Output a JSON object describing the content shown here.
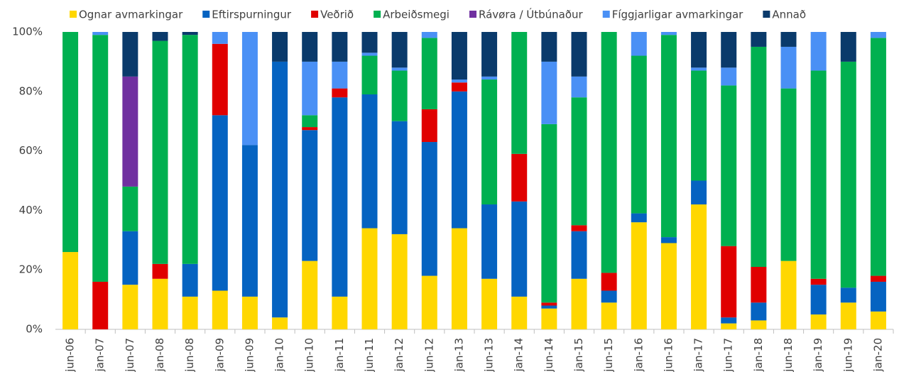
{
  "chart_data": {
    "type": "stacked_bar",
    "categories": [
      "jun-06",
      "jan-07",
      "jun-07",
      "jan-08",
      "jun-08",
      "jan-09",
      "jun-09",
      "jan-10",
      "jun-10",
      "jan-11",
      "jun-11",
      "jan-12",
      "jun-12",
      "jan-13",
      "jun-13",
      "jan-14",
      "jun-14",
      "jan-15",
      "jun-15",
      "jan-16",
      "jun-16",
      "jan-17",
      "jun-17",
      "jan-18",
      "jun-18",
      "jan-19",
      "jun-19",
      "jan-20"
    ],
    "series": [
      {
        "name": "Ognar avmarkingar",
        "color": "#FFD700",
        "values": [
          26,
          0,
          15,
          17,
          11,
          13,
          11,
          4,
          23,
          11,
          34,
          32,
          18,
          34,
          17,
          11,
          7,
          17,
          9,
          36,
          29,
          42,
          2,
          3,
          23,
          5,
          9,
          6
        ]
      },
      {
        "name": "Eftirspurningur",
        "color": "#0563C1",
        "values": [
          0,
          0,
          18,
          0,
          11,
          59,
          51,
          86,
          44,
          67,
          45,
          38,
          45,
          46,
          25,
          32,
          1,
          16,
          4,
          3,
          2,
          8,
          2,
          6,
          0,
          10,
          5,
          10
        ]
      },
      {
        "name": "Veðrið",
        "color": "#E00000",
        "values": [
          0,
          16,
          0,
          5,
          0,
          24,
          0,
          0,
          1,
          3,
          0,
          0,
          11,
          3,
          0,
          16,
          1,
          2,
          6,
          0,
          0,
          0,
          24,
          12,
          0,
          2,
          0,
          2
        ]
      },
      {
        "name": "Arbeiðsmegi",
        "color": "#00B050",
        "values": [
          74,
          83,
          15,
          75,
          77,
          0,
          0,
          0,
          4,
          0,
          13,
          17,
          24,
          0,
          42,
          41,
          60,
          43,
          81,
          53,
          68,
          37,
          54,
          74,
          58,
          70,
          76,
          80
        ]
      },
      {
        "name": "Rávøra / Útbúnaður",
        "color": "#7030A0",
        "values": [
          0,
          0,
          37,
          0,
          0,
          0,
          0,
          0,
          0,
          0,
          0,
          0,
          0,
          0,
          0,
          0,
          0,
          0,
          0,
          0,
          0,
          0,
          0,
          0,
          0,
          0,
          0,
          0
        ]
      },
      {
        "name": "Fíggjarligar avmarkingar",
        "color": "#4A90F5",
        "values": [
          0,
          1,
          0,
          0,
          0,
          4,
          38,
          0,
          18,
          9,
          1,
          1,
          2,
          1,
          1,
          0,
          21,
          7,
          0,
          8,
          1,
          1,
          6,
          0,
          14,
          13,
          0,
          2
        ]
      },
      {
        "name": "Annað",
        "color": "#0A3A6B",
        "values": [
          0,
          0,
          15,
          3,
          1,
          0,
          0,
          10,
          10,
          10,
          7,
          12,
          0,
          16,
          15,
          0,
          10,
          15,
          0,
          0,
          0,
          12,
          12,
          5,
          5,
          0,
          10,
          0
        ]
      }
    ],
    "ylim": [
      0,
      100
    ],
    "yticks": [
      {
        "value": 0,
        "label": "0%"
      },
      {
        "value": 20,
        "label": "20%"
      },
      {
        "value": 40,
        "label": "40%"
      },
      {
        "value": 60,
        "label": "60%"
      },
      {
        "value": 80,
        "label": "80%"
      },
      {
        "value": 100,
        "label": "100%"
      }
    ],
    "legend": "top"
  }
}
